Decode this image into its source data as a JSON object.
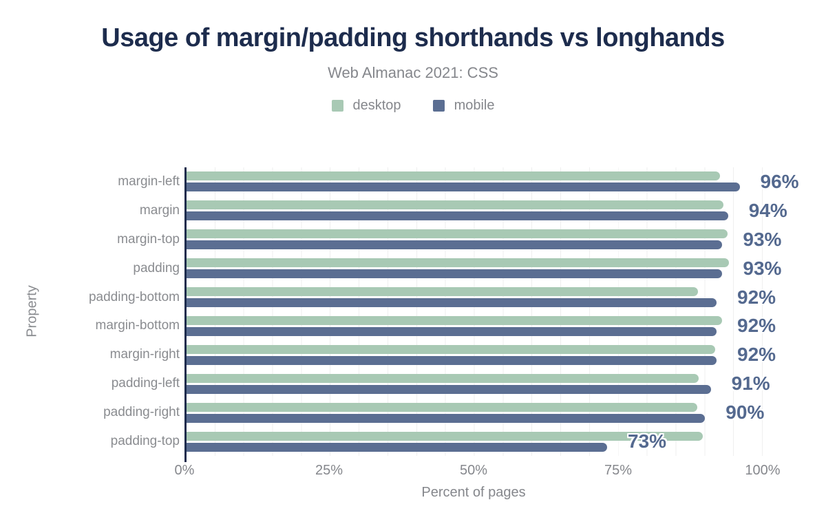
{
  "chart_data": {
    "type": "bar",
    "orientation": "horizontal",
    "title": "Usage of margin/padding shorthands vs longhands",
    "subtitle": "Web Almanac 2021: CSS",
    "xlabel": "Percent of pages",
    "ylabel": "Property",
    "categories": [
      "margin-left",
      "margin",
      "margin-top",
      "padding",
      "padding-bottom",
      "margin-bottom",
      "margin-right",
      "padding-left",
      "padding-right",
      "padding-top"
    ],
    "series": [
      {
        "name": "desktop",
        "color": "#a8c9b4",
        "values": [
          92.6,
          93.2,
          93.9,
          94.2,
          88.8,
          92.9,
          91.8,
          88.9,
          88.7,
          89.6
        ]
      },
      {
        "name": "mobile",
        "color": "#5b6e92",
        "values": [
          96,
          94,
          93,
          93,
          92,
          92,
          92,
          91,
          90,
          73
        ]
      }
    ],
    "bar_labels": [
      "96%",
      "94%",
      "93%",
      "93%",
      "92%",
      "92%",
      "92%",
      "91%",
      "90%",
      "73%"
    ],
    "bar_labels_annotate_series": "mobile",
    "x_ticks": [
      "0%",
      "25%",
      "50%",
      "75%",
      "100%"
    ],
    "x_tick_values": [
      0,
      25,
      50,
      75,
      100
    ],
    "xlim": [
      0,
      100
    ],
    "grid": "vertical minor gridlines every 5%",
    "legend_position": "top-center"
  },
  "legend": {
    "items": [
      {
        "label": "desktop",
        "color": "#a8c9b4"
      },
      {
        "label": "mobile",
        "color": "#5b6e92"
      }
    ]
  },
  "colors": {
    "title": "#1d2c4d",
    "axis_line": "#1d2c4d",
    "muted_text": "#85878c",
    "value_label": "#54698f",
    "gridline": "#efefef",
    "background": "#ffffff"
  }
}
